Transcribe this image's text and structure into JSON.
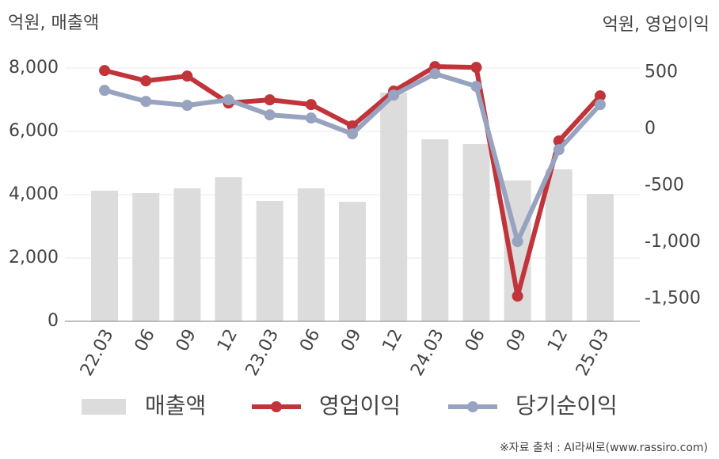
{
  "chart_data": {
    "type": "bar-line",
    "y_axis_title": "억원, 매출액",
    "y2_axis_title": "억원, 영업이익",
    "source": "※자료 출처 : AI라씨로(www.rassiro.com)",
    "categories": [
      "22.03",
      "06",
      "09",
      "12",
      "23.03",
      "06",
      "09",
      "12",
      "24.03",
      "06",
      "09",
      "12",
      "25.03"
    ],
    "series": [
      {
        "name": "매출액",
        "color": "#dcdcdc",
        "kind": "bar",
        "values": [
          4125,
          4050,
          4200,
          4550,
          3800,
          4200,
          3775,
          7225,
          5750,
          5600,
          4450,
          4800,
          4025
        ]
      },
      {
        "name": "영업이익",
        "color": "#c0343a",
        "kind": "line",
        "axis": "y2",
        "values": [
          518,
          427,
          469,
          231,
          259,
          217,
          28,
          336,
          553,
          546,
          -1477,
          -105,
          294
        ]
      },
      {
        "name": "당기순이익",
        "color": "#97a3bf",
        "kind": "line",
        "axis": "y2",
        "values": [
          343,
          245,
          210,
          259,
          126,
          98,
          -42,
          301,
          490,
          378,
          -994,
          -182,
          217
        ]
      }
    ],
    "ylim": [
      0,
      8000
    ],
    "yticks": [
      0,
      {
        "value": 2000,
        "label": "2,000"
      },
      {
        "value": 4000,
        "label": "4,000"
      },
      {
        "value": 6000,
        "label": "6,000"
      },
      {
        "value": 8000,
        "label": "8,000"
      }
    ],
    "y2lim": [
      -1700,
      540
    ],
    "y2ticks": [
      {
        "value": -1500,
        "label": "-1,500"
      },
      {
        "value": -1000,
        "label": "-1,000"
      },
      -500,
      0,
      500
    ],
    "grid": true
  }
}
